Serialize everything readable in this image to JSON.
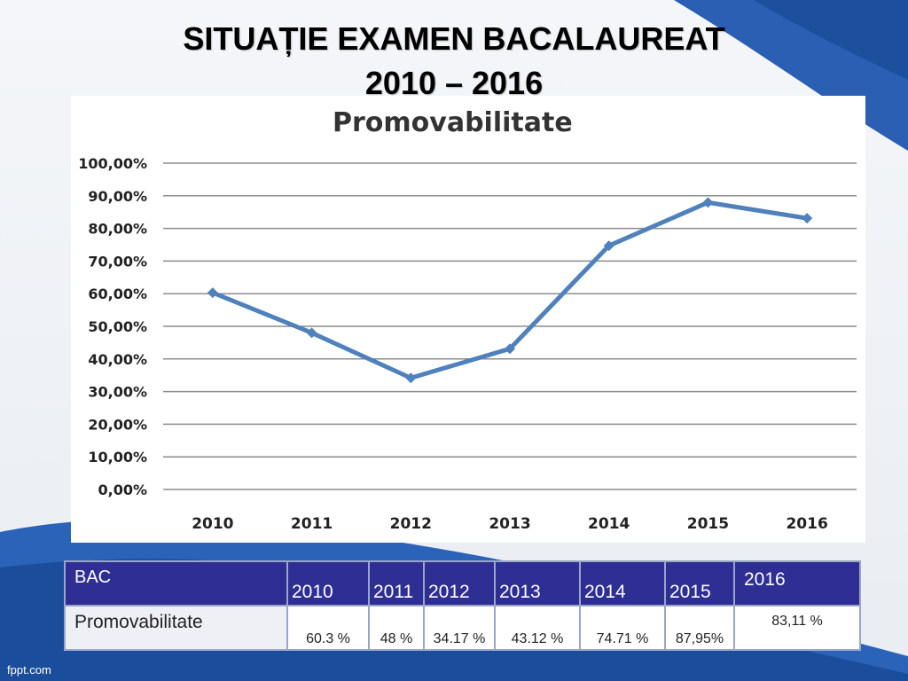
{
  "slide": {
    "title_line1": "SITUAȚIE EXAMEN BACALAUREAT",
    "title_line2": "2010 – 2016",
    "footer": "fppt.com"
  },
  "chart_data": {
    "type": "line",
    "title": "Promovabilitate",
    "categories": [
      "2010",
      "2011",
      "2012",
      "2013",
      "2014",
      "2015",
      "2016"
    ],
    "series": [
      {
        "values": [
          60.3,
          48.0,
          34.17,
          43.12,
          74.71,
          87.95,
          83.11
        ]
      }
    ],
    "y_ticks": [
      "0,00%",
      "10,00%",
      "20,00%",
      "30,00%",
      "40,00%",
      "50,00%",
      "60,00%",
      "70,00%",
      "80,00%",
      "90,00%",
      "100,00%"
    ],
    "ylim": [
      0,
      100
    ],
    "grid": true,
    "colors": {
      "line": "#4f81bd"
    }
  },
  "table": {
    "header": [
      "BAC",
      "2010",
      "2011",
      "2012",
      "2013",
      "2014",
      "2015",
      "2016"
    ],
    "row": [
      "Promovabilitate",
      "60.3 %",
      "48 %",
      "34.17 %",
      "43.12 %",
      "74.71 %",
      "87,95%",
      "83,11 %"
    ]
  }
}
